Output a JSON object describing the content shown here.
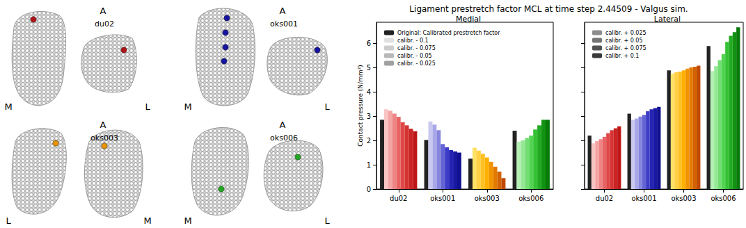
{
  "title": "Ligament prestretch factor MCL at time step 2.44509 - Valgus sim.",
  "images": [
    {
      "name": "du02",
      "anterior": "A",
      "side_labels": [
        "M",
        "L"
      ],
      "color": "#b01418"
    },
    {
      "name": "oks001",
      "anterior": "A",
      "side_labels": [
        "M",
        "L"
      ],
      "color": "#1414a0"
    },
    {
      "name": "oks003",
      "anterior": "A",
      "side_labels": [
        "L",
        "M"
      ],
      "color": "#e89400"
    },
    {
      "name": "oks006",
      "anterior": "A",
      "side_labels": [
        "M",
        "L"
      ],
      "color": "#22a822"
    }
  ],
  "legends": [
    [
      "Original: Calibrated prestretch factor",
      "calibr. - 0.1",
      "calibr. - 0.075",
      "calibr. - 0.05",
      "calibr. - 0.025"
    ],
    [
      "calibr. + 0.025",
      "calibr. + 0.05",
      "calibr. + 0.075",
      "calibr. + 0.1"
    ]
  ],
  "chart_data": [
    {
      "type": "bar",
      "title": "Medial",
      "ylabel": "Contact pressure (N/mm²)",
      "categories": [
        "du02",
        "oks001",
        "oks003",
        "oks006"
      ],
      "ylim": [
        0,
        6.86
      ],
      "yticks": [
        0,
        1,
        2,
        3,
        4,
        5,
        6
      ],
      "grid": false,
      "legend": "upper left",
      "series": [
        {
          "name": "Original: Calibrated prestretch factor",
          "color": "#222222",
          "colors": [
            "#222222",
            "#222222",
            "#222222",
            "#222222"
          ],
          "values": [
            2.85,
            2.02,
            1.25,
            2.4
          ]
        },
        {
          "name": "calibr. - 0.1",
          "color": "#e0e0e0",
          "colors": [
            "#f8c4c4",
            "#c8c8f0",
            "#ffe066",
            "#b4f0b4"
          ],
          "values": [
            3.28,
            2.78,
            1.7,
            1.95
          ]
        },
        {
          "name": "calibr. - 0.075",
          "color": "#cccccc",
          "colors": [
            "#f4a4a4",
            "#a8a8e8",
            "#ffd044",
            "#94e894"
          ],
          "values": [
            3.22,
            2.65,
            1.58,
            2.0
          ]
        },
        {
          "name": "calibr. - 0.05",
          "color": "#b8b8b8",
          "colors": [
            "#ee8484",
            "#8686de",
            "#ffc022",
            "#72de72"
          ],
          "values": [
            3.1,
            2.42,
            1.45,
            2.1
          ]
        },
        {
          "name": "calibr. - 0.025",
          "color": "#a0a0a0",
          "colors": [
            "#e86464",
            "#6464d4",
            "#ffb000",
            "#52d452"
          ],
          "values": [
            2.97,
            1.85,
            1.3,
            2.2
          ]
        },
        {
          "name": "calibr. + 0.025",
          "color": "#8c8c8c",
          "colors": [
            "#e04848",
            "#3c3cc8",
            "#f29400",
            "#34c234"
          ],
          "values": [
            2.75,
            1.72,
            1.12,
            2.45
          ]
        },
        {
          "name": "calibr. + 0.05",
          "color": "#747474",
          "colors": [
            "#d63434",
            "#2424b4",
            "#e27a00",
            "#22aa22"
          ],
          "values": [
            2.62,
            1.6,
            0.92,
            2.62
          ]
        },
        {
          "name": "calibr. + 0.075",
          "color": "#525252",
          "colors": [
            "#ca2424",
            "#1818a2",
            "#d26200",
            "#129212"
          ],
          "values": [
            2.48,
            1.55,
            0.72,
            2.85
          ]
        },
        {
          "name": "calibr. + 0.1",
          "color": "#3a3a3a",
          "colors": [
            "#be1616",
            "#101090",
            "#c24a00",
            "#087a08"
          ],
          "values": [
            2.38,
            1.5,
            0.45,
            2.85
          ]
        }
      ]
    },
    {
      "type": "bar",
      "title": "Lateral",
      "categories": [
        "du02",
        "oks001",
        "oks003",
        "oks006"
      ],
      "ylim": [
        0,
        6.86
      ],
      "yticks": [
        0,
        1,
        2,
        3,
        4,
        5,
        6
      ],
      "grid": false,
      "legend": "upper left",
      "tick_labels": "x",
      "series": [
        {
          "name": "Original: Calibrated prestretch factor",
          "color": "#222222",
          "colors": [
            "#222222",
            "#222222",
            "#222222",
            "#222222"
          ],
          "values": [
            2.2,
            3.1,
            4.88,
            5.88
          ]
        },
        {
          "name": "calibr. - 0.1",
          "color": "#e0e0e0",
          "colors": [
            "#f8c4c4",
            "#c8c8f0",
            "#ffe066",
            "#b4f0b4"
          ],
          "values": [
            1.88,
            2.85,
            4.75,
            4.85
          ]
        },
        {
          "name": "calibr. - 0.075",
          "color": "#cccccc",
          "colors": [
            "#f4a4a4",
            "#a8a8e8",
            "#ffd044",
            "#94e894"
          ],
          "values": [
            1.97,
            2.9,
            4.8,
            5.05
          ]
        },
        {
          "name": "calibr. - 0.05",
          "color": "#b8b8b8",
          "colors": [
            "#ee8484",
            "#8686de",
            "#ffc022",
            "#72de72"
          ],
          "values": [
            2.05,
            2.98,
            4.83,
            5.3
          ]
        },
        {
          "name": "calibr. - 0.025",
          "color": "#a0a0a0",
          "colors": [
            "#e86464",
            "#6464d4",
            "#ffb000",
            "#52d452"
          ],
          "values": [
            2.15,
            3.05,
            4.88,
            5.55
          ]
        },
        {
          "name": "calibr. + 0.025",
          "color": "#8c8c8c",
          "colors": [
            "#e04848",
            "#3c3cc8",
            "#f29400",
            "#34c234"
          ],
          "values": [
            2.3,
            3.2,
            4.95,
            6.05
          ]
        },
        {
          "name": "calibr. + 0.05",
          "color": "#747474",
          "colors": [
            "#d63434",
            "#2424b4",
            "#e27a00",
            "#22aa22"
          ],
          "values": [
            2.42,
            3.28,
            5.0,
            6.3
          ]
        },
        {
          "name": "calibr. + 0.075",
          "color": "#525252",
          "colors": [
            "#ca2424",
            "#1818a2",
            "#d26200",
            "#129212"
          ],
          "values": [
            2.5,
            3.33,
            5.03,
            6.45
          ]
        },
        {
          "name": "calibr. + 0.1",
          "color": "#3a3a3a",
          "colors": [
            "#be1616",
            "#101090",
            "#c24a00",
            "#087a08"
          ],
          "values": [
            2.58,
            3.38,
            5.07,
            6.65
          ]
        }
      ]
    }
  ]
}
